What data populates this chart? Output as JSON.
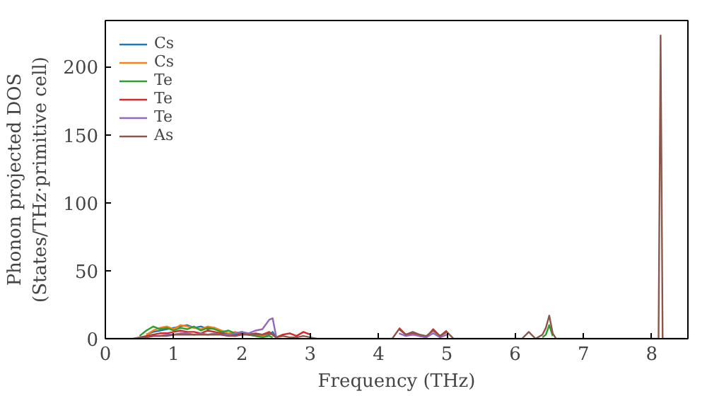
{
  "chart_data": {
    "type": "line",
    "xlabel": "Frequency (THz)",
    "ylabel": "Phonon projected DOS\n(States/THz·primitive cell)",
    "x": [
      0,
      0.4,
      0.5,
      0.6,
      0.7,
      0.8,
      0.9,
      1.0,
      1.1,
      1.2,
      1.3,
      1.4,
      1.5,
      1.6,
      1.7,
      1.8,
      1.9,
      2.0,
      2.1,
      2.2,
      2.3,
      2.4,
      2.45,
      2.5,
      2.6,
      2.7,
      2.8,
      2.9,
      3.0,
      3.1,
      4.2,
      4.3,
      4.4,
      4.5,
      4.6,
      4.7,
      4.8,
      4.9,
      5.0,
      5.1,
      6.1,
      6.2,
      6.3,
      6.4,
      6.45,
      6.5,
      6.55,
      6.6,
      8.05,
      8.1,
      8.13,
      8.16,
      8.2,
      8.5
    ],
    "xlim": [
      0,
      8.53
    ],
    "ylim": [
      0,
      234
    ],
    "xticks": [
      0,
      1,
      2,
      3,
      4,
      5,
      6,
      7,
      8
    ],
    "yticks": [
      0,
      50,
      100,
      150,
      200
    ],
    "legend": "top left",
    "grid": false,
    "line_style": "solid",
    "series": [
      {
        "name": "Cs",
        "color": "#1f77b4",
        "values": [
          null,
          null,
          null,
          3,
          5,
          6,
          7,
          8,
          9,
          10,
          8,
          9,
          7,
          8,
          5,
          4,
          3,
          4,
          3,
          2,
          2,
          3,
          5,
          1,
          null,
          null,
          null,
          null,
          null,
          null,
          null,
          null,
          null,
          null,
          null,
          null,
          null,
          null,
          null,
          null,
          null,
          null,
          null,
          null,
          null,
          null,
          null,
          null,
          null,
          null,
          null,
          null,
          null,
          null
        ]
      },
      {
        "name": "Cs",
        "color": "#ff7f0e",
        "values": [
          null,
          null,
          null,
          3,
          6,
          8,
          9,
          7,
          10,
          9,
          8,
          7,
          9,
          8,
          6,
          4,
          5,
          3,
          4,
          3,
          2,
          4,
          3,
          1,
          null,
          null,
          null,
          null,
          null,
          null,
          null,
          null,
          null,
          null,
          null,
          null,
          null,
          null,
          null,
          null,
          null,
          null,
          null,
          null,
          null,
          null,
          null,
          null,
          null,
          null,
          null,
          null,
          null,
          null
        ]
      },
      {
        "name": "Te",
        "color": "#2ca02c",
        "values": [
          null,
          null,
          2,
          6,
          9,
          7,
          8,
          6,
          8,
          7,
          9,
          6,
          8,
          7,
          5,
          6,
          4,
          5,
          3,
          2,
          1,
          2,
          1,
          null,
          null,
          null,
          null,
          null,
          null,
          null,
          null,
          null,
          null,
          null,
          null,
          null,
          null,
          null,
          null,
          null,
          null,
          null,
          null,
          1,
          3,
          10,
          2,
          null,
          null,
          null,
          null,
          null,
          null,
          null
        ]
      },
      {
        "name": "Te",
        "color": "#d62728",
        "values": [
          null,
          null,
          1,
          2,
          3,
          4,
          4,
          5,
          6,
          5,
          5,
          4,
          6,
          5,
          4,
          3,
          2,
          4,
          3,
          4,
          3,
          5,
          3,
          1,
          3,
          4,
          2,
          5,
          3,
          null,
          null,
          8,
          3,
          4,
          2,
          1,
          7,
          2,
          6,
          null,
          null,
          null,
          null,
          null,
          null,
          null,
          null,
          null,
          null,
          null,
          null,
          null,
          null,
          null
        ]
      },
      {
        "name": "Te",
        "color": "#9467bd",
        "values": [
          null,
          null,
          null,
          1,
          2,
          2,
          3,
          3,
          4,
          4,
          3,
          4,
          3,
          4,
          3,
          3,
          4,
          5,
          4,
          6,
          7,
          14,
          15,
          2,
          null,
          null,
          null,
          null,
          null,
          null,
          null,
          4,
          2,
          3,
          2,
          1,
          4,
          1,
          3,
          null,
          null,
          null,
          null,
          null,
          null,
          null,
          null,
          null,
          null,
          null,
          null,
          null,
          null,
          null
        ]
      },
      {
        "name": "As",
        "color": "#8c564b",
        "values": [
          0,
          0,
          1,
          1,
          2,
          2,
          2,
          3,
          3,
          3,
          3,
          3,
          3,
          3,
          3,
          2,
          2,
          3,
          3,
          3,
          3,
          4,
          3,
          1,
          2,
          1,
          1,
          2,
          1,
          0,
          0,
          7,
          3,
          5,
          3,
          2,
          6,
          2,
          5,
          0,
          0,
          5,
          0,
          3,
          8,
          17,
          4,
          0,
          0,
          0,
          223,
          0,
          0,
          0
        ]
      }
    ]
  }
}
